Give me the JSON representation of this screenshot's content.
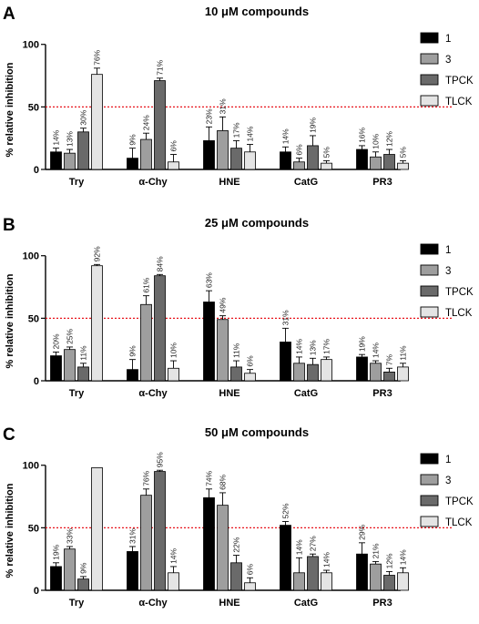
{
  "chart_data": [
    {
      "type": "bar",
      "panel": "A",
      "title": "10 μM compounds",
      "ylabel": "% relative inhibition",
      "xlabel": "",
      "ylim": [
        0,
        110
      ],
      "yticks": [
        0,
        50,
        100
      ],
      "reference_line": 50,
      "categories": [
        "Try",
        "α-Chy",
        "HNE",
        "CatG",
        "PR3"
      ],
      "series": [
        {
          "name": "1",
          "color": "#000000",
          "values": [
            14,
            9,
            23,
            14,
            16
          ],
          "errors": [
            3,
            8,
            11,
            4,
            3
          ],
          "labels": [
            "14%",
            "9%",
            "23%",
            "14%",
            "16%"
          ]
        },
        {
          "name": "3",
          "color": "#9e9e9e",
          "values": [
            13,
            24,
            31,
            6,
            10
          ],
          "errors": [
            3,
            5,
            11,
            3,
            4
          ],
          "labels": [
            "13%",
            "24%",
            "31%",
            "6%",
            "10%"
          ]
        },
        {
          "name": "TPCK",
          "color": "#6a6a6a",
          "values": [
            30,
            71,
            17,
            19,
            12
          ],
          "errors": [
            3,
            2,
            6,
            8,
            4
          ],
          "labels": [
            "30%",
            "71%",
            "17%",
            "19%",
            "12%"
          ]
        },
        {
          "name": "TLCK",
          "color": "#e4e4e4",
          "values": [
            76,
            6,
            14,
            5,
            5
          ],
          "errors": [
            5,
            6,
            6,
            2,
            2
          ],
          "labels": [
            "76%",
            "6%",
            "14%",
            "5%",
            "5%"
          ]
        }
      ],
      "legend_position": "right"
    },
    {
      "type": "bar",
      "panel": "B",
      "title": "25 μM compounds",
      "ylabel": "% relative inhibition",
      "xlabel": "",
      "ylim": [
        0,
        110
      ],
      "yticks": [
        0,
        50,
        100
      ],
      "reference_line": 50,
      "categories": [
        "Try",
        "α-Chy",
        "HNE",
        "CatG",
        "PR3"
      ],
      "series": [
        {
          "name": "1",
          "color": "#000000",
          "values": [
            20,
            9,
            63,
            31,
            19
          ],
          "errors": [
            3,
            8,
            9,
            11,
            2
          ],
          "labels": [
            "20%",
            "9%",
            "63%",
            "31%",
            "19%"
          ]
        },
        {
          "name": "3",
          "color": "#9e9e9e",
          "values": [
            25,
            61,
            49,
            14,
            14
          ],
          "errors": [
            2,
            7,
            3,
            5,
            2
          ],
          "labels": [
            "25%",
            "61%",
            "49%",
            "14%",
            "14%"
          ]
        },
        {
          "name": "TPCK",
          "color": "#6a6a6a",
          "values": [
            11,
            84,
            11,
            13,
            7
          ],
          "errors": [
            3,
            1,
            5,
            5,
            3
          ],
          "labels": [
            "11%",
            "84%",
            "11%",
            "13%",
            "7%"
          ]
        },
        {
          "name": "TLCK",
          "color": "#e4e4e4",
          "values": [
            92,
            10,
            6,
            17,
            11
          ],
          "errors": [
            1,
            6,
            3,
            2,
            3
          ],
          "labels": [
            "92%",
            "10%",
            "6%",
            "17%",
            "11%"
          ]
        }
      ],
      "legend_position": "right"
    },
    {
      "type": "bar",
      "panel": "C",
      "title": "50 μM compounds",
      "ylabel": "% relative inhibition",
      "xlabel": "",
      "ylim": [
        0,
        110
      ],
      "yticks": [
        0,
        50,
        100
      ],
      "reference_line": 50,
      "categories": [
        "Try",
        "α-Chy",
        "HNE",
        "CatG",
        "PR3"
      ],
      "series": [
        {
          "name": "1",
          "color": "#000000",
          "values": [
            19,
            31,
            74,
            52,
            29
          ],
          "errors": [
            3,
            4,
            7,
            3,
            9
          ],
          "labels": [
            "19%",
            "31%",
            "74%",
            "52%",
            "29%"
          ]
        },
        {
          "name": "3",
          "color": "#9e9e9e",
          "values": [
            33,
            76,
            68,
            14,
            21
          ],
          "errors": [
            2,
            5,
            10,
            12,
            2
          ],
          "labels": [
            "33%",
            "76%",
            "68%",
            "14%",
            "21%"
          ]
        },
        {
          "name": "TPCK",
          "color": "#6a6a6a",
          "values": [
            9,
            95,
            22,
            27,
            12
          ],
          "errors": [
            2,
            1,
            6,
            2,
            3
          ],
          "labels": [
            "9%",
            "95%",
            "22%",
            "27%",
            "12%"
          ]
        },
        {
          "name": "TLCK",
          "color": "#e4e4e4",
          "values": [
            98,
            14,
            6,
            14,
            14
          ],
          "errors": [
            0,
            5,
            4,
            2,
            4
          ],
          "labels": [
            "",
            "14%",
            "6%",
            "14%",
            "14%"
          ]
        }
      ],
      "legend_position": "right"
    }
  ],
  "style": {
    "reference_line_color": "#e8141c",
    "axis_color": "#000000"
  }
}
